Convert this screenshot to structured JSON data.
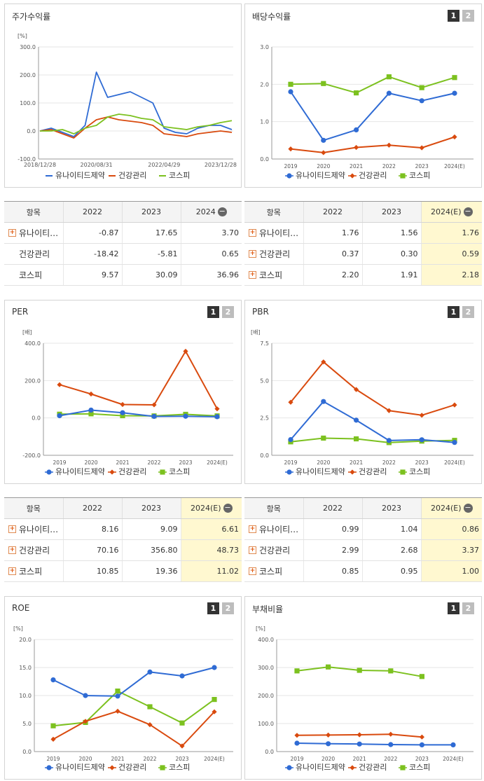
{
  "colors": {
    "unite": "#2f6bd4",
    "health": "#d94a0e",
    "kospi": "#7cc11f"
  },
  "legend": [
    "유나이티드제약",
    "건강관리",
    "코스피"
  ],
  "charts": {
    "stock": {
      "title": "주가수익률",
      "unit": "[%]",
      "yticks": [
        "300.0",
        "200.0",
        "100.0",
        "0.0",
        "-100.0"
      ],
      "xticks": [
        "2018/12/28",
        "2020/08/31",
        "2022/04/29",
        "2023/12/28"
      ]
    },
    "dividend": {
      "title": "배당수익률",
      "btn1": "1",
      "btn2": "2",
      "unit": "",
      "yticks": [
        "3.0",
        "2.0",
        "1.0",
        "0.0"
      ],
      "xticks": [
        "2019",
        "2020",
        "2021",
        "2022",
        "2023",
        "2024(E)"
      ]
    },
    "per": {
      "title": "PER",
      "btn1": "1",
      "btn2": "2",
      "unit": "[배]",
      "yticks": [
        "400.0",
        "200.0",
        "0.0",
        "-200.0"
      ],
      "xticks": [
        "2019",
        "2020",
        "2021",
        "2022",
        "2023",
        "2024(E)"
      ]
    },
    "pbr": {
      "title": "PBR",
      "btn1": "1",
      "btn2": "2",
      "unit": "[배]",
      "yticks": [
        "7.5",
        "5.0",
        "2.5",
        "0.0"
      ],
      "xticks": [
        "2019",
        "2020",
        "2021",
        "2022",
        "2023",
        "2024(E)"
      ]
    },
    "roe": {
      "title": "ROE",
      "btn1": "1",
      "btn2": "2",
      "unit": "[%]",
      "yticks": [
        "20.0",
        "15.0",
        "10.0",
        "5.0",
        "0.0"
      ],
      "xticks": [
        "2019",
        "2020",
        "2021",
        "2022",
        "2023",
        "2024(E)"
      ]
    },
    "debt": {
      "title": "부채비율",
      "btn1": "1",
      "btn2": "2",
      "unit": "[%]",
      "yticks": [
        "400.0",
        "300.0",
        "200.0",
        "100.0",
        "0.0"
      ],
      "xticks": [
        "2019",
        "2020",
        "2021",
        "2022",
        "2023",
        "2024(E)"
      ]
    }
  },
  "tables": {
    "stock": {
      "head": [
        "항목",
        "2022",
        "2023",
        "2024"
      ],
      "rows": [
        [
          "유나이티…",
          "-0.87",
          "17.65",
          "3.70"
        ],
        [
          "건강관리",
          "-18.42",
          "-5.81",
          "0.65"
        ],
        [
          "코스피",
          "9.57",
          "30.09",
          "36.96"
        ]
      ]
    },
    "dividend": {
      "head": [
        "항목",
        "2022",
        "2023",
        "2024(E)"
      ],
      "rows": [
        [
          "유나이티…",
          "1.76",
          "1.56",
          "1.76"
        ],
        [
          "건강관리",
          "0.37",
          "0.30",
          "0.59"
        ],
        [
          "코스피",
          "2.20",
          "1.91",
          "2.18"
        ]
      ]
    },
    "per": {
      "head": [
        "항목",
        "2022",
        "2023",
        "2024(E)"
      ],
      "rows": [
        [
          "유나이티…",
          "8.16",
          "9.09",
          "6.61"
        ],
        [
          "건강관리",
          "70.16",
          "356.80",
          "48.73"
        ],
        [
          "코스피",
          "10.85",
          "19.36",
          "11.02"
        ]
      ]
    },
    "pbr": {
      "head": [
        "항목",
        "2022",
        "2023",
        "2024(E)"
      ],
      "rows": [
        [
          "유나이티…",
          "0.99",
          "1.04",
          "0.86"
        ],
        [
          "건강관리",
          "2.99",
          "2.68",
          "3.37"
        ],
        [
          "코스피",
          "0.85",
          "0.95",
          "1.00"
        ]
      ]
    }
  },
  "chart_data": [
    {
      "type": "line",
      "title": "주가수익률",
      "ylabel": "[%]",
      "ylim": [
        -100,
        300
      ],
      "x": [
        "2018/12/28",
        "2019/06",
        "2019/12",
        "2020/03",
        "2020/06",
        "2020/08/31",
        "2020/12",
        "2021/03",
        "2021/06",
        "2021/09",
        "2021/12",
        "2022/04/29",
        "2022/08",
        "2022/12",
        "2023/04",
        "2023/08",
        "2023/12/28",
        "2024/03"
      ],
      "series": [
        {
          "name": "유나이티드제약",
          "values": [
            0,
            10,
            -5,
            -20,
            20,
            210,
            120,
            130,
            140,
            120,
            100,
            10,
            -5,
            -10,
            10,
            20,
            20,
            5
          ]
        },
        {
          "name": "건강관리",
          "values": [
            0,
            5,
            -10,
            -25,
            10,
            40,
            50,
            40,
            35,
            30,
            20,
            -10,
            -15,
            -20,
            -10,
            -5,
            0,
            -5
          ]
        },
        {
          "name": "코스피",
          "values": [
            0,
            0,
            5,
            -10,
            10,
            20,
            50,
            60,
            55,
            45,
            40,
            15,
            10,
            5,
            15,
            20,
            30,
            37
          ]
        }
      ]
    },
    {
      "type": "line",
      "title": "배당수익률",
      "ylim": [
        0,
        3
      ],
      "categories": [
        "2019",
        "2020",
        "2021",
        "2022",
        "2023",
        "2024(E)"
      ],
      "series": [
        {
          "name": "유나이티드제약",
          "values": [
            1.8,
            0.5,
            0.78,
            1.76,
            1.56,
            1.76
          ]
        },
        {
          "name": "건강관리",
          "values": [
            0.27,
            0.17,
            0.31,
            0.37,
            0.3,
            0.59
          ]
        },
        {
          "name": "코스피",
          "values": [
            2.0,
            2.02,
            1.77,
            2.2,
            1.91,
            2.18
          ]
        }
      ]
    },
    {
      "type": "line",
      "title": "PER",
      "ylabel": "[배]",
      "ylim": [
        -200,
        400
      ],
      "categories": [
        "2019",
        "2020",
        "2021",
        "2022",
        "2023",
        "2024(E)"
      ],
      "series": [
        {
          "name": "유나이티드제약",
          "values": [
            12,
            42,
            28,
            8.16,
            9.09,
            6.61
          ]
        },
        {
          "name": "건강관리",
          "values": [
            178,
            128,
            72,
            70.16,
            356.8,
            48.73
          ]
        },
        {
          "name": "코스피",
          "values": [
            20,
            22,
            12,
            10.85,
            19.36,
            11.02
          ]
        }
      ]
    },
    {
      "type": "line",
      "title": "PBR",
      "ylabel": "[배]",
      "ylim": [
        0,
        7.5
      ],
      "categories": [
        "2019",
        "2020",
        "2021",
        "2022",
        "2023",
        "2024(E)"
      ],
      "series": [
        {
          "name": "유나이티드제약",
          "values": [
            1.05,
            3.6,
            2.35,
            0.99,
            1.04,
            0.86
          ]
        },
        {
          "name": "건강관리",
          "values": [
            3.55,
            6.25,
            4.4,
            2.99,
            2.68,
            3.37
          ]
        },
        {
          "name": "코스피",
          "values": [
            0.9,
            1.15,
            1.1,
            0.85,
            0.95,
            1.0
          ]
        }
      ]
    },
    {
      "type": "line",
      "title": "ROE",
      "ylabel": "[%]",
      "ylim": [
        0,
        20
      ],
      "categories": [
        "2019",
        "2020",
        "2021",
        "2022",
        "2023",
        "2024(E)"
      ],
      "series": [
        {
          "name": "유나이티드제약",
          "values": [
            12.8,
            10.0,
            9.9,
            14.2,
            13.5,
            15.0
          ]
        },
        {
          "name": "건강관리",
          "values": [
            2.2,
            5.4,
            7.2,
            4.8,
            1.0,
            7.1
          ]
        },
        {
          "name": "코스피",
          "values": [
            4.6,
            5.2,
            10.8,
            8.0,
            5.1,
            9.3
          ]
        }
      ]
    },
    {
      "type": "line",
      "title": "부채비율",
      "ylabel": "[%]",
      "ylim": [
        0,
        400
      ],
      "categories": [
        "2019",
        "2020",
        "2021",
        "2022",
        "2023",
        "2024(E)"
      ],
      "series": [
        {
          "name": "유나이티드제약",
          "values": [
            30,
            28,
            27,
            25,
            24,
            24
          ]
        },
        {
          "name": "건강관리",
          "values": [
            58,
            59,
            60,
            62,
            52,
            null
          ]
        },
        {
          "name": "코스피",
          "values": [
            288,
            302,
            290,
            288,
            268,
            null
          ]
        }
      ]
    }
  ]
}
